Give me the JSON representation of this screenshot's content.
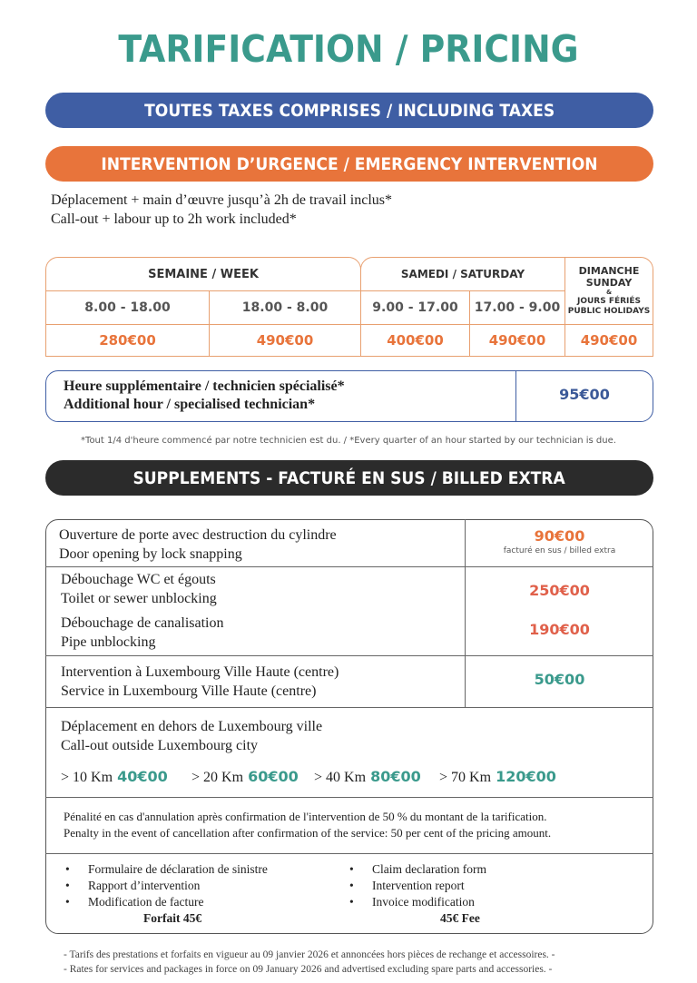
{
  "title": "TARIFICATION / PRICING",
  "taxes_banner": "TOUTES TAXES COMPRISES / INCLUDING TAXES",
  "emergency_banner": "INTERVENTION D’URGENCE / EMERGENCY INTERVENTION",
  "emergency_note": [
    "Déplacement + main d’œuvre jusqu’à 2h de travail inclus*",
    "Call-out + labour up to 2h work included*"
  ],
  "rates_table": {
    "week_header": "SEMAINE / WEEK",
    "saturday_header": "SAMEDI / SATURDAY",
    "sunday_header": [
      "DIMANCHE",
      "SUNDAY",
      "&",
      "JOURS FÉRIÉS",
      "PUBLIC HOLIDAYS"
    ],
    "times": [
      "8.00 - 18.00",
      "18.00 - 8.00",
      "9.00 - 17.00",
      "17.00 - 9.00"
    ],
    "prices": [
      "280€00",
      "490€00",
      "400€00",
      "490€00",
      "490€00"
    ]
  },
  "additional_hour": {
    "lines": [
      "Heure supplémentaire / technicien spécialisé*",
      "Additional hour / specialised technician*"
    ],
    "price": "95€00"
  },
  "footnote": "*Tout 1/4 d'heure commencé par notre technicien est du. / *Every quarter of an hour started by our technician is due.",
  "supplements_banner": "SUPPLEMENTS - FACTURÉ EN SUS / BILLED EXTRA",
  "supplements": {
    "door": {
      "lines": [
        "Ouverture de porte avec destruction du cylindre",
        "Door opening by lock snapping"
      ],
      "price": "90€00",
      "note": "facturé en sus / billed extra"
    },
    "wc": {
      "lines": [
        "Débouchage WC et égouts",
        "Toilet or sewer unblocking"
      ],
      "price": "250€00"
    },
    "pipe": {
      "lines": [
        "Débouchage de canalisation",
        "Pipe unblocking"
      ],
      "price": "190€00"
    },
    "centre": {
      "lines": [
        "Intervention à Luxembourg Ville Haute (centre)",
        "Service in Luxembourg Ville Haute (centre)"
      ],
      "price": "50€00"
    },
    "outside": {
      "lines": [
        "Déplacement en dehors de Luxembourg ville",
        "Call-out outside Luxembourg city"
      ],
      "distances": [
        {
          "label": "> 10 Km",
          "price": "40€00"
        },
        {
          "label": "> 20 Km",
          "price": "60€00"
        },
        {
          "label": "> 40 Km",
          "price": "80€00"
        },
        {
          "label": "> 70 Km",
          "price": "120€00"
        }
      ]
    },
    "penalty": [
      "Pénalité en cas d'annulation après confirmation de l'intervention de 50 % du montant de la tarification.",
      "Penalty in the event of cancellation after confirmation of the service: 50 per cent of the pricing amount."
    ],
    "admin_fr": [
      "Formulaire de déclaration de sinistre",
      "Rapport d’intervention",
      "Modification de facture"
    ],
    "admin_fr_fee": "Forfait 45€",
    "admin_en": [
      "Claim declaration form",
      "Intervention report",
      "Invoice modification"
    ],
    "admin_en_fee": "45€ Fee"
  },
  "validity": [
    "- Tarifs des prestations et forfaits en vigueur au 09 janvier 2026 et annoncées hors pièces de rechange et accessoires. -",
    "- Rates for services and packages in force on 09 January 2026 and advertised excluding spare parts and accessories. -"
  ],
  "colors": {
    "teal": "#3a9a8c",
    "blue": "#3f5ea4",
    "orange": "#e8743b",
    "dark": "#2b2b2b",
    "red": "#e0604a"
  }
}
